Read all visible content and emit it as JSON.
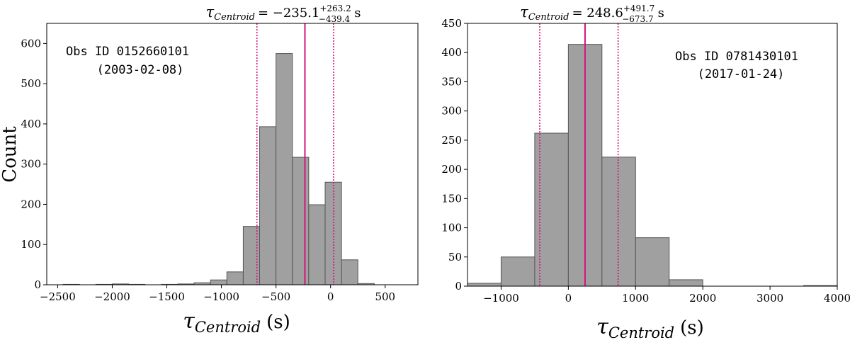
{
  "chart_data": [
    {
      "type": "bar",
      "panel": "left",
      "annotation": {
        "line1": "Obs ID 0152660101",
        "line2": "(2003-02-08)"
      },
      "title": {
        "symbol": "τ",
        "subscript": "Centroid",
        "eq": "= −235.1",
        "sup": "+263.2",
        "sub": "−439.4",
        "unit": "s"
      },
      "xlabel": {
        "symbol": "τ",
        "subscript": "Centroid",
        "unit": "(s)"
      },
      "ylabel": "Count",
      "xlim": [
        -2600,
        800
      ],
      "ylim": [
        0,
        650
      ],
      "xticks": [
        -2500,
        -2000,
        -1500,
        -1000,
        -500,
        0,
        500
      ],
      "xtick_labels": [
        "−2500",
        "−2000",
        "−1500",
        "−1000",
        "−500",
        "0",
        "500"
      ],
      "yticks": [
        0,
        100,
        200,
        300,
        400,
        500,
        600
      ],
      "ytick_labels": [
        "0",
        "100",
        "200",
        "300",
        "400",
        "500",
        "600"
      ],
      "bin_width": 150,
      "bin_lefts": [
        -2600,
        -2450,
        -2300,
        -2150,
        -2000,
        -1850,
        -1700,
        -1550,
        -1400,
        -1250,
        -1100,
        -950,
        -800,
        -650,
        -500,
        -350,
        -200,
        -50,
        100,
        250,
        400,
        550,
        700
      ],
      "values": [
        0,
        1,
        0,
        1,
        2,
        1,
        0,
        1,
        2,
        5,
        12,
        32,
        145,
        393,
        575,
        317,
        199,
        255,
        62,
        3,
        0,
        0,
        0
      ],
      "centroid": -235.1,
      "lower": -674.5,
      "upper": 28.1
    },
    {
      "type": "bar",
      "panel": "right",
      "annotation": {
        "line1": "Obs ID 0781430101",
        "line2": "(2017-01-24)"
      },
      "title": {
        "symbol": "τ",
        "subscript": "Centroid",
        "eq": "= 248.6",
        "sup": "+491.7",
        "sub": "−673.7",
        "unit": "s"
      },
      "xlabel": {
        "symbol": "τ",
        "subscript": "Centroid",
        "unit": "(s)"
      },
      "ylabel": "",
      "xlim": [
        -1500,
        4000
      ],
      "ylim": [
        0,
        450
      ],
      "xticks": [
        -1000,
        0,
        1000,
        2000,
        3000,
        4000
      ],
      "xtick_labels": [
        "−1000",
        "0",
        "1000",
        "2000",
        "3000",
        "4000"
      ],
      "yticks": [
        0,
        50,
        100,
        150,
        200,
        250,
        300,
        350,
        400,
        450
      ],
      "ytick_labels": [
        "0",
        "50",
        "100",
        "150",
        "200",
        "250",
        "300",
        "350",
        "400",
        "450"
      ],
      "bin_width": 500,
      "bin_lefts": [
        -1500,
        -1000,
        -500,
        0,
        500,
        1000,
        1500,
        2000,
        2500,
        3000,
        3500
      ],
      "values": [
        5,
        50,
        262,
        414,
        221,
        83,
        11,
        0,
        0,
        0,
        1
      ],
      "centroid": 248.6,
      "lower": -425.1,
      "upper": 740.3
    }
  ],
  "colors": {
    "bar_fill": "#a0a0a0",
    "bar_edge": "#555555",
    "centroid_line": "#d6127c",
    "interval_line": "#d6127c"
  }
}
